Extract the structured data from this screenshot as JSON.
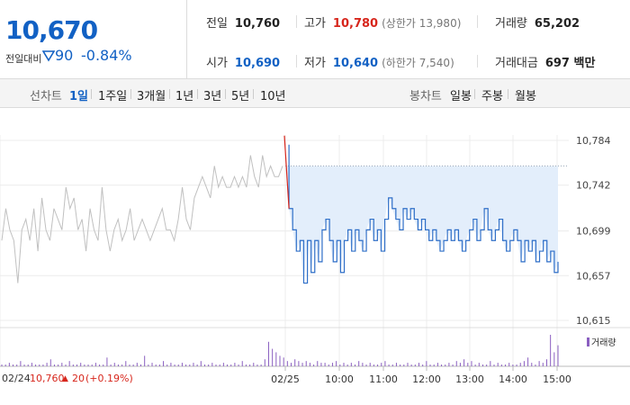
{
  "quote": {
    "price": "10,670",
    "change_label": "전일대비",
    "change_amount": "90",
    "change_rate": "-0.84%",
    "prev_close_label": "전일",
    "prev_close": "10,760",
    "high_label": "고가",
    "high": "10,780",
    "upper_limit": "(상한가 13,980)",
    "volume_label": "거래량",
    "volume": "65,202",
    "open_label": "시가",
    "open": "10,690",
    "low_label": "저가",
    "low": "10,640",
    "lower_limit": "(하한가 7,540)",
    "amount_label": "거래대금",
    "amount": "697 백만"
  },
  "tabs": {
    "line_label": "선차트",
    "periods": [
      "1일",
      "1주일",
      "3개월",
      "1년",
      "3년",
      "5년",
      "10년"
    ],
    "active_period": "1일",
    "candle_label": "봉차트",
    "candles": [
      "일봉",
      "주봉",
      "월봉"
    ]
  },
  "footer": {
    "date": "02/24",
    "ref_price": "10,760",
    "ref_change": "20",
    "ref_rate": "(+0.19%)",
    "volume_legend": "거래량"
  },
  "colors": {
    "accent_blue": "#1261c4",
    "up_red": "#d7261c",
    "prev_line": "#c0c0c0",
    "today_line": "#2f6fc8",
    "today_fill": "#e3eefb",
    "volume_bar": "#8a5fc0"
  },
  "chart_data": {
    "type": "line",
    "y_ticks": [
      10784,
      10742,
      10699,
      10657,
      10615
    ],
    "y_tick_labels": [
      "10,784",
      "10,742",
      "10,699",
      "10,657",
      "10,615"
    ],
    "ylim": [
      10615,
      10784
    ],
    "x_ticks": [
      "02/25",
      "10:00",
      "11:00",
      "12:00",
      "13:00",
      "14:00",
      "15:00"
    ],
    "reference_price": 10760,
    "series": [
      {
        "session": "prev",
        "values": [
          10690,
          10720,
          10700,
          10690,
          10650,
          10700,
          10710,
          10690,
          10720,
          10680,
          10730,
          10700,
          10690,
          10720,
          10710,
          10700,
          10740,
          10720,
          10730,
          10700,
          10710,
          10680,
          10720,
          10700,
          10690,
          10740,
          10700,
          10680,
          10700,
          10710,
          10690,
          10700,
          10720,
          10690,
          10700,
          10710,
          10700,
          10690,
          10700,
          10710,
          10720,
          10700,
          10700,
          10690,
          10710,
          10740,
          10710,
          10700,
          10730,
          10740,
          10750,
          10740,
          10730,
          10760,
          10740,
          10750,
          10740,
          10740,
          10750,
          10740,
          10750,
          10740,
          10770,
          10750,
          10740,
          10770,
          10750,
          10760,
          10750,
          10750,
          10760
        ]
      },
      {
        "session": "today",
        "values": [
          10780,
          10720,
          10700,
          10680,
          10690,
          10650,
          10690,
          10660,
          10690,
          10670,
          10700,
          10710,
          10690,
          10670,
          10690,
          10660,
          10690,
          10700,
          10680,
          10700,
          10690,
          10680,
          10700,
          10710,
          10690,
          10700,
          10680,
          10710,
          10730,
          10720,
          10710,
          10700,
          10720,
          10710,
          10720,
          10710,
          10700,
          10710,
          10700,
          10690,
          10700,
          10690,
          10680,
          10690,
          10700,
          10690,
          10700,
          10690,
          10680,
          10690,
          10700,
          10710,
          10690,
          10700,
          10720,
          10700,
          10690,
          10700,
          10710,
          10690,
          10680,
          10690,
          10700,
          10690,
          10670,
          10690,
          10680,
          10690,
          10670,
          10680,
          10690,
          10670,
          10680,
          10660,
          10670
        ]
      }
    ],
    "volume": [
      1,
      1,
      2,
      1,
      1,
      3,
      1,
      1,
      2,
      1,
      1,
      1,
      2,
      4,
      1,
      1,
      2,
      1,
      3,
      1,
      1,
      2,
      1,
      1,
      1,
      2,
      1,
      1,
      5,
      1,
      2,
      1,
      1,
      3,
      1,
      1,
      2,
      1,
      6,
      1,
      2,
      1,
      1,
      3,
      1,
      2,
      1,
      1,
      2,
      1,
      1,
      2,
      1,
      3,
      1,
      1,
      2,
      1,
      1,
      2,
      1,
      1,
      2,
      1,
      3,
      1,
      1,
      2,
      1,
      1,
      4,
      14,
      10,
      8,
      6,
      5,
      3,
      2,
      4,
      3,
      2,
      3,
      2,
      1,
      3,
      2,
      2,
      1,
      2,
      3,
      1,
      2,
      1,
      2,
      1,
      3,
      2,
      1,
      2,
      1,
      1,
      2,
      3,
      1,
      1,
      2,
      1,
      1,
      2,
      1,
      1,
      2,
      1,
      3,
      1,
      1,
      2,
      1,
      1,
      2,
      1,
      3,
      2,
      4,
      2,
      3,
      1,
      2,
      1,
      1,
      3,
      1,
      2,
      1,
      1,
      2,
      1,
      1,
      2,
      3,
      5,
      2,
      1,
      3,
      2,
      4,
      18,
      8,
      12
    ]
  }
}
